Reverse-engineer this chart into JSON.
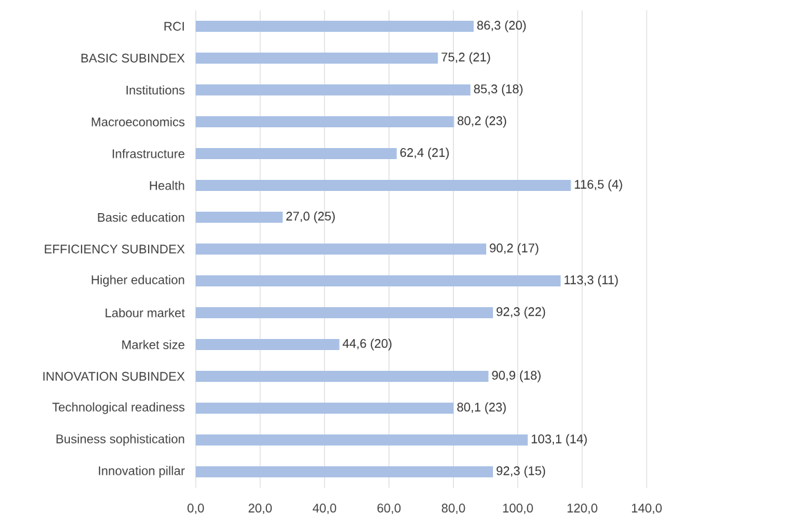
{
  "chart_data": {
    "type": "bar",
    "orientation": "horizontal",
    "categories": [
      "RCI",
      "BASIC SUBINDEX",
      "Institutions",
      "Macroeconomics",
      "Infrastructure",
      "Health",
      "Basic education",
      "EFFICIENCY SUBINDEX",
      "Higher education",
      "Labour market",
      "Market size",
      "INNOVATION SUBINDEX",
      "Technological readiness",
      "Business sophistication",
      "Innovation pillar"
    ],
    "values": [
      86.3,
      75.2,
      85.3,
      80.2,
      62.4,
      116.5,
      27.0,
      90.2,
      113.3,
      92.3,
      44.6,
      90.9,
      80.1,
      103.1,
      92.3
    ],
    "value_labels": [
      "86,3 (20)",
      "75,2 (21)",
      "85,3 (18)",
      "80,2 (23)",
      "62,4 (21)",
      "116,5 (4)",
      "27,0 (25)",
      "90,2 (17)",
      "113,3 (11)",
      "92,3 (22)",
      "44,6 (20)",
      "90,9 (18)",
      "80,1 (23)",
      "103,1 (14)",
      "92,3 (15)"
    ],
    "color": "#a9c0e4",
    "xlim": [
      0,
      140
    ],
    "xticks": [
      {
        "value": 0,
        "label": "0,0"
      },
      {
        "value": 20,
        "label": "20,0"
      },
      {
        "value": 40,
        "label": "40,0"
      },
      {
        "value": 60,
        "label": "60,0"
      },
      {
        "value": 80,
        "label": "80,0"
      },
      {
        "value": 100,
        "label": "100,0"
      },
      {
        "value": 120,
        "label": "120,0"
      },
      {
        "value": 140,
        "label": "140,0"
      }
    ],
    "grid": "x"
  }
}
